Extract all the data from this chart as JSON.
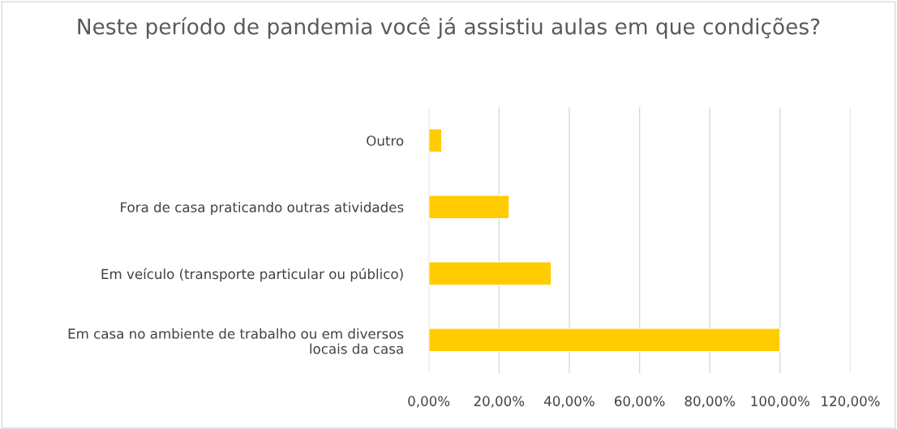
{
  "chart_data": {
    "type": "bar",
    "orientation": "horizontal",
    "title": "Neste período de pandemia você já assistiu aulas em que condições?",
    "categories": [
      "Outro",
      "Fora de casa praticando outras atividades",
      "Em veículo (transporte particular ou público)",
      "Em casa no ambiente de trabalho ou em diversos\nlocais da casa"
    ],
    "values": [
      3.7,
      22.9,
      34.9,
      100
    ],
    "color": "#ffcc00",
    "xlim": [
      0,
      120
    ],
    "xticks": [
      {
        "value": 0,
        "label": "0,00%"
      },
      {
        "value": 20,
        "label": "20,00%"
      },
      {
        "value": 40,
        "label": "40,00%"
      },
      {
        "value": 60,
        "label": "60,00%"
      },
      {
        "value": 80,
        "label": "80,00%"
      },
      {
        "value": 100,
        "label": "100,00%"
      },
      {
        "value": 120,
        "label": "120,00%"
      }
    ],
    "grid": "x"
  }
}
